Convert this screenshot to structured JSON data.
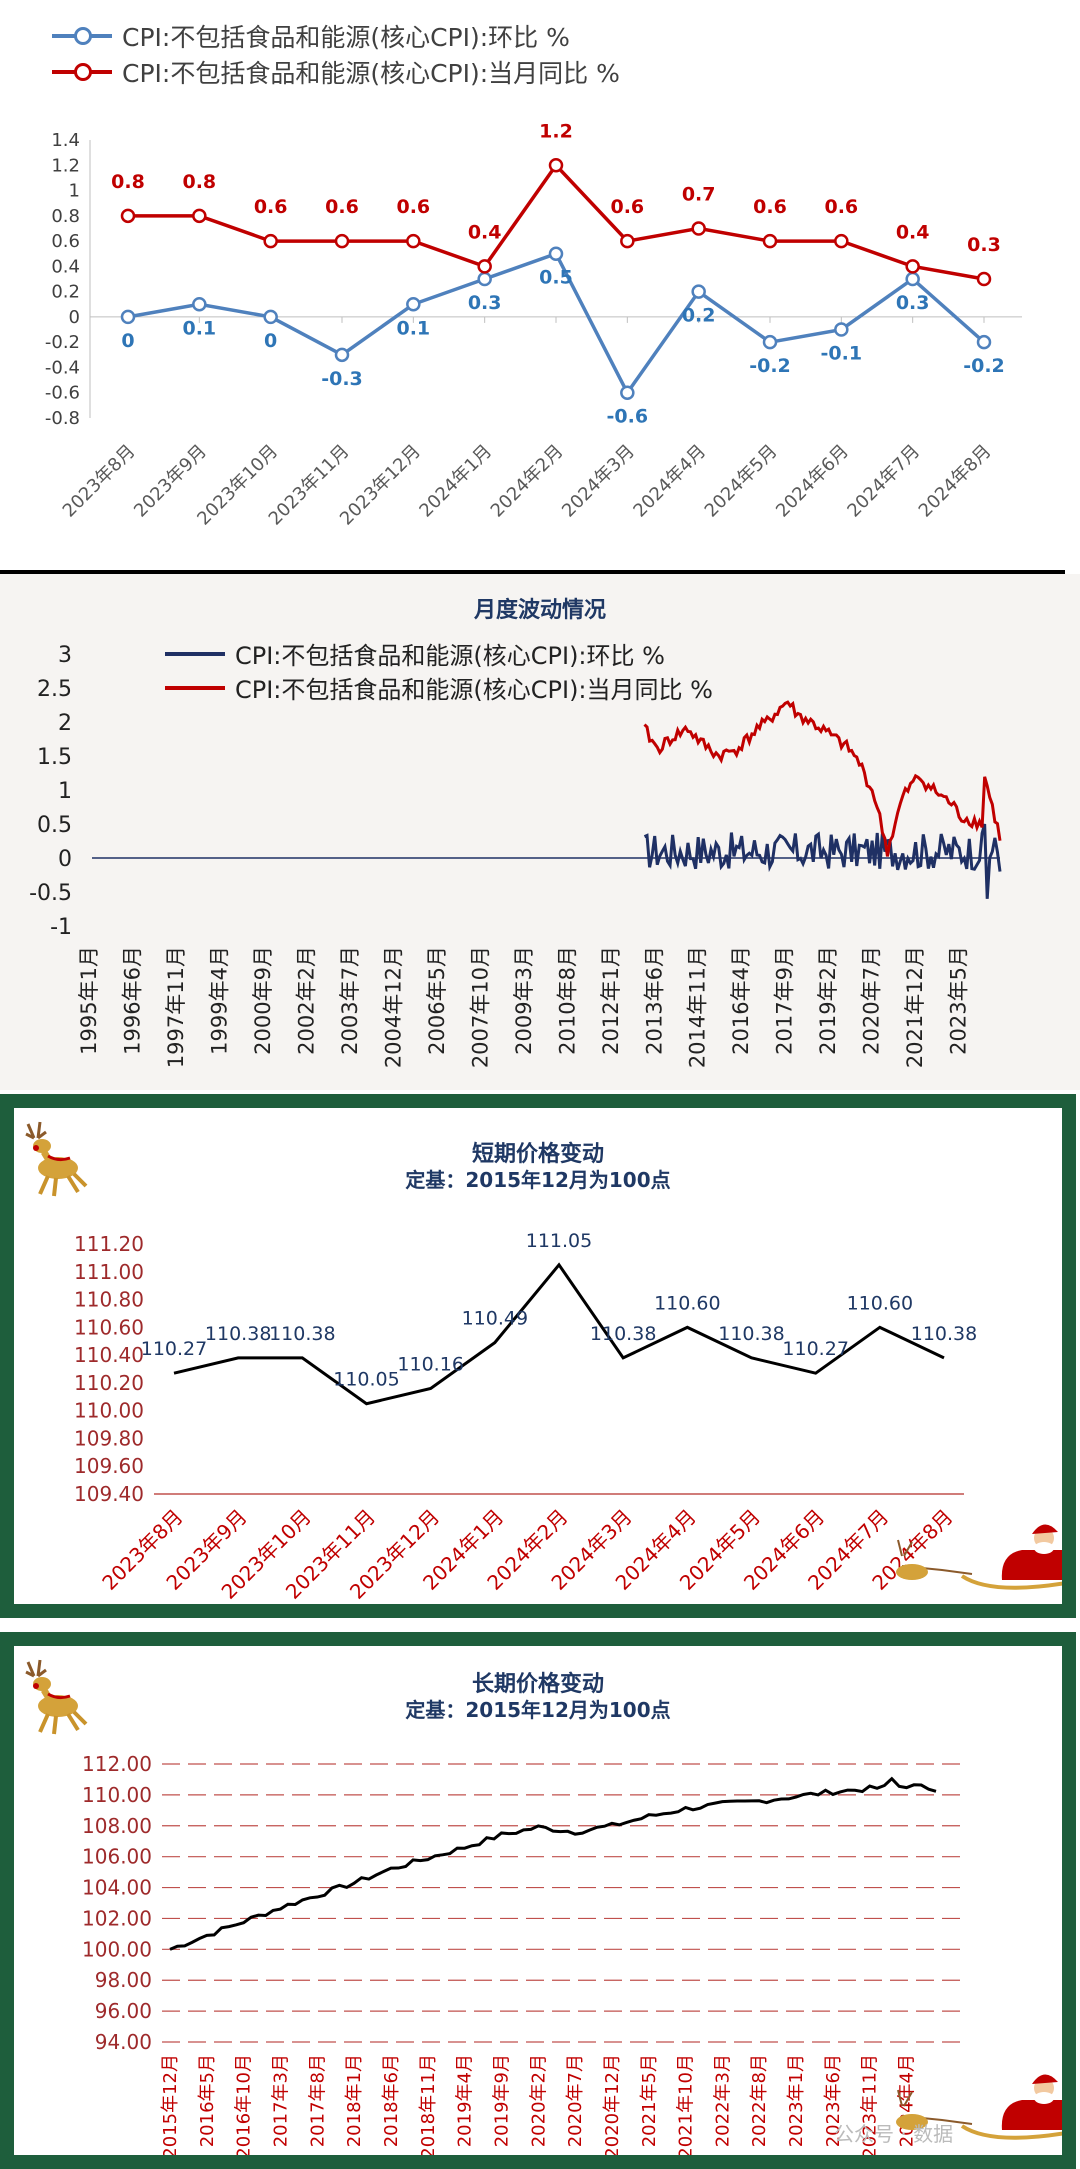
{
  "chart_data": [
    {
      "type": "line",
      "title": "",
      "categories": [
        "2023年8月",
        "2023年9月",
        "2023年10月",
        "2023年11月",
        "2023年12月",
        "2024年1月",
        "2024年2月",
        "2024年3月",
        "2024年4月",
        "2024年5月",
        "2024年6月",
        "2024年7月",
        "2024年8月"
      ],
      "series": [
        {
          "name": "CPI:不包括食品和能源(核心CPI):环比 %",
          "color": "#4f81bd",
          "values": [
            0,
            0.1,
            0,
            -0.3,
            0.1,
            0.3,
            0.5,
            -0.6,
            0.2,
            -0.2,
            -0.1,
            0.3,
            -0.2
          ]
        },
        {
          "name": "CPI:不包括食品和能源(核心CPI):当月同比 %",
          "color": "#c00000",
          "values": [
            0.8,
            0.8,
            0.6,
            0.6,
            0.6,
            0.4,
            1.2,
            0.6,
            0.7,
            0.6,
            0.6,
            0.4,
            0.3
          ]
        }
      ],
      "yticks": [
        "1.4",
        "1.2",
        "1",
        "0.8",
        "0.6",
        "0.4",
        "0.2",
        "0",
        "-0.2",
        "-0.4",
        "-0.6",
        "-0.8"
      ],
      "ylim": [
        -0.8,
        1.4
      ],
      "legend": "top-left"
    },
    {
      "type": "line",
      "title": "月度波动情况",
      "x_ticks": [
        "1995年1月",
        "1996年6月",
        "1997年11月",
        "1999年4月",
        "2000年9月",
        "2002年2月",
        "2003年7月",
        "2004年12月",
        "2006年5月",
        "2007年10月",
        "2009年3月",
        "2010年8月",
        "2012年1月",
        "2013年6月",
        "2014年11月",
        "2016年4月",
        "2017年9月",
        "2019年2月",
        "2020年7月",
        "2021年12月",
        "2023年5月"
      ],
      "series": [
        {
          "name": "CPI:不包括食品和能源(核心CPI):环比 %",
          "color": "#1f3064",
          "x_start": "2013年1月",
          "x_end": "2024年8月",
          "y_range": [
            -0.6,
            0.5
          ]
        },
        {
          "name": "CPI:不包括食品和能源(核心CPI):当月同比 %",
          "color": "#c00000",
          "x_start": "2013年1月",
          "x_end": "2024年8月",
          "anchors": [
            [
              "2013年1月",
              1.9
            ],
            [
              "2013年6月",
              1.6
            ],
            [
              "2014年1月",
              1.8
            ],
            [
              "2014年6月",
              1.9
            ],
            [
              "2014年11月",
              1.7
            ],
            [
              "2015年6月",
              1.5
            ],
            [
              "2016年1月",
              1.6
            ],
            [
              "2016年4月",
              1.7
            ],
            [
              "2016年9月",
              1.9
            ],
            [
              "2017年1月",
              2.0
            ],
            [
              "2017年6月",
              2.2
            ],
            [
              "2017年9月",
              2.3
            ],
            [
              "2018年1月",
              2.1
            ],
            [
              "2018年6",
              "2.0"
            ],
            [
              "2019年2月",
              1.8
            ],
            [
              "2019年9月",
              1.6
            ],
            [
              "2020年1月",
              1.4
            ],
            [
              "2020年7月",
              0.9
            ],
            [
              "2020年12月",
              0.1
            ],
            [
              "2021年6月",
              0.9
            ],
            [
              "2021年12月",
              1.2
            ],
            [
              "2022年6月",
              1.0
            ],
            [
              "2023年1月",
              0.8
            ],
            [
              "2023年5月",
              0.6
            ],
            [
              "2024年1月",
              0.5
            ],
            [
              "2024年2月",
              1.2
            ],
            [
              "2024年8月",
              0.3
            ]
          ]
        }
      ],
      "yticks": [
        "3",
        "2.5",
        "2",
        "1.5",
        "1",
        "0.5",
        "0",
        "-0.5",
        "-1"
      ],
      "ylim": [
        -1,
        3
      ],
      "legend": "top"
    },
    {
      "type": "line",
      "title": "短期价格变动",
      "subtitle": "定基：2015年12月为100点",
      "categories": [
        "2023年8月",
        "2023年9月",
        "2023年10月",
        "2023年11月",
        "2023年12月",
        "2024年1月",
        "2024年2月",
        "2024年3月",
        "2024年4月",
        "2024年5月",
        "2024年6月",
        "2024年7月",
        "2024年8月"
      ],
      "values": [
        110.27,
        110.38,
        110.38,
        110.05,
        110.16,
        110.49,
        111.05,
        110.38,
        110.6,
        110.38,
        110.27,
        110.6,
        110.38
      ],
      "value_labels": [
        "110.27",
        "110.38",
        "110.38",
        "110.05",
        "110.16",
        "110.49",
        "111.05",
        "110.38",
        "110.60",
        "110.38",
        "110.27",
        "110.60",
        "110.38"
      ],
      "yticks": [
        "111.20",
        "111.00",
        "110.80",
        "110.60",
        "110.40",
        "110.20",
        "110.00",
        "109.80",
        "109.60",
        "109.40"
      ],
      "ylim": [
        109.4,
        111.2
      ]
    },
    {
      "type": "line",
      "title": "长期价格变动",
      "subtitle": "定基：2015年12月为100点",
      "x_ticks": [
        "2015年12月",
        "2016年5月",
        "2016年10月",
        "2017年3月",
        "2017年8月",
        "2018年1月",
        "2018年6月",
        "2018年11月",
        "2019年4月",
        "2019年9月",
        "2020年2月",
        "2020年7月",
        "2020年12月",
        "2021年5月",
        "2021年10月",
        "2022年3月",
        "2022年8月",
        "2023年1月",
        "2023年6月",
        "2023年11月",
        "2024年4月"
      ],
      "anchors": [
        [
          0,
          100.0
        ],
        [
          5,
          100.9
        ],
        [
          10,
          101.8
        ],
        [
          15,
          102.7
        ],
        [
          20,
          103.5
        ],
        [
          25,
          104.3
        ],
        [
          30,
          105.2
        ],
        [
          35,
          105.9
        ],
        [
          40,
          106.6
        ],
        [
          45,
          107.4
        ],
        [
          50,
          107.9
        ],
        [
          55,
          107.6
        ],
        [
          60,
          108.0
        ],
        [
          65,
          108.6
        ],
        [
          70,
          109.1
        ],
        [
          75,
          109.4
        ],
        [
          80,
          109.6
        ],
        [
          85,
          109.9
        ],
        [
          90,
          110.2
        ],
        [
          95,
          110.4
        ],
        [
          100,
          110.6
        ],
        [
          104,
          110.4
        ]
      ],
      "yticks": [
        "112.00",
        "110.00",
        "108.00",
        "106.00",
        "104.00",
        "102.00",
        "100.00",
        "98.00",
        "96.00",
        "94.00"
      ],
      "ylim": [
        94,
        112
      ]
    }
  ],
  "watermark": "公众号 · 数据",
  "decor": {
    "deer_icon": "reindeer-icon",
    "sleigh_icon": "santa-sleigh-icon"
  }
}
